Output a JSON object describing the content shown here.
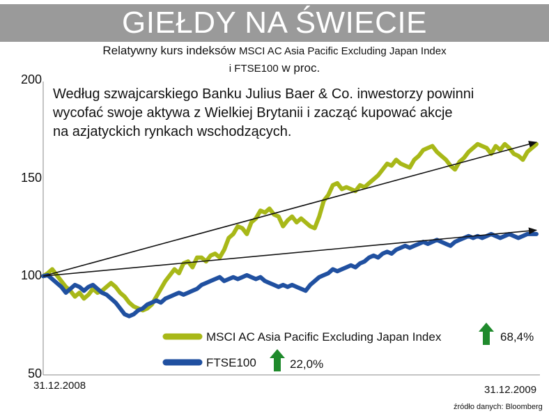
{
  "header": {
    "title": "GIEŁDY NA ŚWIECIE"
  },
  "subtitle": {
    "line1_a": "Relatywny kurs indeksów",
    "line1_b": "MSCI AC Asia Pacific Excluding Japan Index",
    "line2_a": "i FTSE100",
    "line2_b": "w proc."
  },
  "annotation": {
    "line1": "Według szwajcarskiego Banku Julius Baer & Co. inwestorzy powinni",
    "line2": "wycofać swoje aktywa z Wielkiej Brytanii i zacząć kupować akcje",
    "line3": "na azjatyckich rynkach wschodzących."
  },
  "footer": {
    "date_start": "31.12.2008",
    "date_end": "31.12.2009",
    "source": "źródło danych: Bloomberg"
  },
  "chart_data": {
    "type": "line",
    "title": "",
    "xlabel": "",
    "ylabel": "",
    "x_start": "31.12.2008",
    "x_end": "31.12.2009",
    "ylim": [
      50,
      200
    ],
    "yticks": [
      "200",
      "150",
      "100",
      "50"
    ],
    "grid": false,
    "legend_position": "bottom-right",
    "series": [
      {
        "name": "MSCI AC Asia Pacific Excluding Japan Index",
        "color": "#a8b818",
        "change": "68,4%",
        "change_icon": "arrow-up-icon",
        "values": [
          100.5,
          102,
          104,
          101,
          98,
          95,
          93,
          90,
          92,
          89,
          91,
          94,
          92,
          93,
          95,
          97,
          95,
          92,
          90,
          87,
          85,
          84,
          83,
          84,
          86,
          90,
          94,
          98,
          101,
          104,
          102,
          107,
          108,
          105,
          110,
          110,
          108,
          111,
          112,
          110,
          114,
          120,
          122,
          126,
          125,
          122,
          128,
          130,
          134,
          133,
          135,
          132,
          131,
          126,
          129,
          131,
          128,
          130,
          128,
          126,
          125,
          131,
          139,
          142,
          147,
          148,
          145,
          146,
          145,
          144,
          147,
          146,
          148,
          150,
          152,
          155,
          158,
          157,
          160,
          158,
          157,
          156,
          160,
          162,
          165,
          166,
          167,
          164,
          162,
          160,
          157,
          155,
          159,
          161,
          164,
          166,
          168,
          167,
          166,
          163,
          167,
          165,
          168,
          166,
          163,
          162,
          160,
          164,
          166,
          168
        ]
      },
      {
        "name": "FTSE100",
        "color": "#2050a0",
        "change": "22,0%",
        "change_icon": "arrow-up-icon",
        "values": [
          100.5,
          101,
          99,
          97,
          95,
          92,
          94,
          96,
          95,
          93,
          95,
          96,
          94,
          92,
          91,
          89,
          87,
          84,
          81,
          80,
          81,
          83,
          84,
          86,
          87,
          88,
          87,
          89,
          90,
          91,
          92,
          91,
          92,
          93,
          94,
          96,
          97,
          98,
          99,
          100,
          98,
          99,
          100,
          99,
          100,
          101,
          100,
          99,
          100,
          98,
          97,
          96,
          95,
          96,
          95,
          96,
          95,
          94,
          93,
          96,
          98,
          100,
          101,
          102,
          104,
          103,
          104,
          105,
          106,
          105,
          107,
          108,
          110,
          111,
          110,
          112,
          113,
          112,
          114,
          115,
          116,
          115,
          116,
          117,
          118,
          117,
          118,
          119,
          118,
          117,
          116,
          118,
          119,
          120,
          121,
          120,
          121,
          120,
          121,
          122,
          121,
          120,
          121,
          122,
          121,
          120,
          121,
          122,
          122,
          122
        ]
      }
    ],
    "trend_lines": [
      {
        "from": [
          0,
          100.5
        ],
        "to": [
          1,
          169
        ]
      },
      {
        "from": [
          0,
          100.5
        ],
        "to": [
          1,
          124
        ]
      }
    ]
  }
}
